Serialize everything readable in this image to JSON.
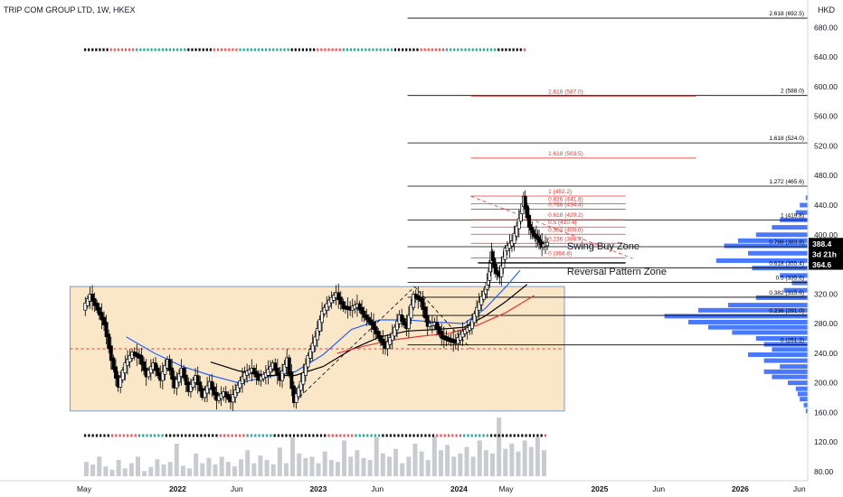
{
  "header": {
    "title": "TRIP COM GROUP LTD, 1W, HKEX"
  },
  "axis": {
    "currency": "HKD"
  },
  "colors": {
    "up": "#26a69a",
    "down": "#ef5350",
    "candle": "#000000",
    "volume": "#c9cbd1",
    "profile": "#2962ff",
    "zone": "#f5d7a3",
    "zone_border": "#7b9bd6",
    "fib_red": "#e53935",
    "fib_black": "#000000",
    "ma_fast": "#2962ff",
    "ma_mid": "#000000",
    "ma_slow": "#e53935"
  },
  "chart_data": {
    "type": "candlestick",
    "title": "TRIP COM GROUP LTD, 1W, HKEX",
    "y_unit": "HKD",
    "ylim": [
      78,
      712
    ],
    "y_ticks": [
      80,
      120,
      160,
      200,
      240,
      280,
      320,
      360,
      400,
      440,
      480,
      520,
      560,
      600,
      640,
      680
    ],
    "x_ticks": [
      {
        "label": "May",
        "t": 0
      },
      {
        "label": "2022",
        "t": 0.665
      },
      {
        "label": "Jun",
        "t": 1.085
      },
      {
        "label": "2023",
        "t": 1.665
      },
      {
        "label": "Jun",
        "t": 2.085
      },
      {
        "label": "2024",
        "t": 2.665
      },
      {
        "label": "May",
        "t": 3.0
      },
      {
        "label": "2025",
        "t": 3.665
      },
      {
        "label": "Jun",
        "t": 4.085
      },
      {
        "label": "2026",
        "t": 4.665
      },
      {
        "label": "Jun",
        "t": 5.085
      }
    ],
    "price_path": [
      [
        0,
        300
      ],
      [
        0.05,
        318
      ],
      [
        0.1,
        300
      ],
      [
        0.15,
        280
      ],
      [
        0.2,
        232
      ],
      [
        0.25,
        196
      ],
      [
        0.3,
        225
      ],
      [
        0.35,
        240
      ],
      [
        0.4,
        235
      ],
      [
        0.45,
        210
      ],
      [
        0.5,
        225
      ],
      [
        0.55,
        205
      ],
      [
        0.6,
        230
      ],
      [
        0.65,
        195
      ],
      [
        0.7,
        218
      ],
      [
        0.75,
        190
      ],
      [
        0.8,
        208
      ],
      [
        0.85,
        182
      ],
      [
        0.9,
        200
      ],
      [
        0.95,
        178
      ],
      [
        1.0,
        186
      ],
      [
        1.05,
        176
      ],
      [
        1.1,
        195
      ],
      [
        1.15,
        212
      ],
      [
        1.2,
        218
      ],
      [
        1.25,
        205
      ],
      [
        1.3,
        212
      ],
      [
        1.35,
        225
      ],
      [
        1.4,
        205
      ],
      [
        1.45,
        232
      ],
      [
        1.5,
        175
      ],
      [
        1.55,
        200
      ],
      [
        1.6,
        235
      ],
      [
        1.65,
        260
      ],
      [
        1.7,
        295
      ],
      [
        1.75,
        310
      ],
      [
        1.8,
        320
      ],
      [
        1.85,
        302
      ],
      [
        1.9,
        300
      ],
      [
        1.95,
        305
      ],
      [
        2.0,
        290
      ],
      [
        2.05,
        280
      ],
      [
        2.1,
        262
      ],
      [
        2.15,
        248
      ],
      [
        2.2,
        265
      ],
      [
        2.25,
        290
      ],
      [
        2.3,
        275
      ],
      [
        2.35,
        318
      ],
      [
        2.4,
        312
      ],
      [
        2.45,
        278
      ],
      [
        2.5,
        280
      ],
      [
        2.55,
        262
      ],
      [
        2.6,
        258
      ],
      [
        2.65,
        255
      ],
      [
        2.7,
        268
      ],
      [
        2.75,
        275
      ],
      [
        2.8,
        300
      ],
      [
        2.85,
        322
      ],
      [
        2.88,
        340
      ],
      [
        2.9,
        375
      ],
      [
        2.93,
        350
      ],
      [
        2.96,
        345
      ],
      [
        3.0,
        380
      ],
      [
        3.05,
        390
      ],
      [
        3.1,
        420
      ],
      [
        3.13,
        450
      ],
      [
        3.17,
        412
      ],
      [
        3.2,
        400
      ],
      [
        3.23,
        395
      ],
      [
        3.26,
        385
      ],
      [
        3.3,
        388
      ]
    ],
    "volume_max": 1.0,
    "volume": [
      0.22,
      0.18,
      0.3,
      0.15,
      0.1,
      0.25,
      0.12,
      0.2,
      0.3,
      0.08,
      0.14,
      0.26,
      0.18,
      0.22,
      0.5,
      0.16,
      0.12,
      0.35,
      0.2,
      0.28,
      0.18,
      0.3,
      0.22,
      0.15,
      0.26,
      0.4,
      0.2,
      0.32,
      0.25,
      0.18,
      0.44,
      0.2,
      0.6,
      0.35,
      0.28,
      0.3,
      0.2,
      0.38,
      0.25,
      0.22,
      0.55,
      0.3,
      0.4,
      0.28,
      0.25,
      0.6,
      0.35,
      0.3,
      0.42,
      0.2,
      0.3,
      0.5,
      0.38,
      0.25,
      0.62,
      0.4,
      0.48,
      0.3,
      0.35,
      0.45,
      0.3,
      0.55,
      0.4,
      0.35,
      0.9,
      0.42,
      0.5,
      0.38,
      0.55,
      0.45,
      0.6,
      0.4
    ],
    "moving_averages": [
      {
        "key": "ma_fast",
        "points": [
          [
            0.3,
            262
          ],
          [
            0.5,
            240
          ],
          [
            0.7,
            222
          ],
          [
            0.9,
            210
          ],
          [
            1.1,
            200
          ],
          [
            1.3,
            208
          ],
          [
            1.5,
            215
          ],
          [
            1.7,
            238
          ],
          [
            1.9,
            272
          ],
          [
            2.1,
            285
          ],
          [
            2.3,
            285
          ],
          [
            2.5,
            282
          ],
          [
            2.7,
            280
          ],
          [
            2.85,
            300
          ],
          [
            3.0,
            330
          ],
          [
            3.1,
            352
          ]
        ]
      },
      {
        "key": "ma_mid",
        "points": [
          [
            0.9,
            228
          ],
          [
            1.1,
            216
          ],
          [
            1.3,
            210
          ],
          [
            1.5,
            210
          ],
          [
            1.7,
            222
          ],
          [
            1.9,
            245
          ],
          [
            2.1,
            262
          ],
          [
            2.3,
            270
          ],
          [
            2.5,
            272
          ],
          [
            2.7,
            275
          ],
          [
            2.85,
            290
          ],
          [
            3.0,
            310
          ],
          [
            3.15,
            333
          ]
        ]
      },
      {
        "key": "ma_slow",
        "points": [
          [
            1.8,
            240
          ],
          [
            2.0,
            250
          ],
          [
            2.2,
            258
          ],
          [
            2.4,
            263
          ],
          [
            2.6,
            267
          ],
          [
            2.8,
            278
          ],
          [
            3.0,
            295
          ],
          [
            3.2,
            318
          ]
        ]
      }
    ],
    "volume_profile": [
      [
        450,
        0.01
      ],
      [
        440,
        0.04
      ],
      [
        430,
        0.06
      ],
      [
        420,
        0.14
      ],
      [
        410,
        0.18
      ],
      [
        400,
        0.26
      ],
      [
        392,
        0.35
      ],
      [
        385,
        0.42
      ],
      [
        375,
        0.3
      ],
      [
        365,
        0.46
      ],
      [
        355,
        0.28
      ],
      [
        345,
        0.14
      ],
      [
        335,
        0.08
      ],
      [
        325,
        0.12
      ],
      [
        315,
        0.26
      ],
      [
        305,
        0.4
      ],
      [
        298,
        0.55
      ],
      [
        290,
        0.72
      ],
      [
        282,
        0.6
      ],
      [
        275,
        0.5
      ],
      [
        268,
        0.38
      ],
      [
        260,
        0.26
      ],
      [
        252,
        0.22
      ],
      [
        245,
        0.18
      ],
      [
        238,
        0.3
      ],
      [
        230,
        0.22
      ],
      [
        222,
        0.14
      ],
      [
        215,
        0.22
      ],
      [
        208,
        0.18
      ],
      [
        200,
        0.1
      ],
      [
        192,
        0.06
      ],
      [
        185,
        0.05
      ],
      [
        178,
        0.04
      ],
      [
        170,
        0.02
      ],
      [
        162,
        0.01
      ]
    ],
    "zone_box": {
      "t0": -0.1,
      "t1": 3.415,
      "p0": 162,
      "p1": 330
    },
    "fib_black": [
      {
        "label": "2.618 (692.5)",
        "price": 692.5,
        "t0": 2.3
      },
      {
        "label": "2 (588.0)",
        "price": 588.0,
        "t0": 2.3
      },
      {
        "label": "1.618 (524.0)",
        "price": 524.0,
        "t0": 2.3
      },
      {
        "label": "1.272 (465.6)",
        "price": 465.6,
        "t0": 2.3
      },
      {
        "label": "1 (419.8)",
        "price": 419.8,
        "t0": 2.3
      },
      {
        "label": "0.786 (383.8)",
        "price": 383.8,
        "t0": 2.3
      },
      {
        "label": "0.618 (355.4)",
        "price": 355.4,
        "t0": 2.3
      },
      {
        "label": "0.5 (335.6)",
        "price": 335.6,
        "t0": 2.3
      },
      {
        "label": "0.382 (315.6)",
        "price": 315.6,
        "t0": 2.3
      },
      {
        "label": "0.236 (291.0)",
        "price": 291.0,
        "t0": 2.3
      },
      {
        "label": "0 (251.2)",
        "price": 251.2,
        "t0": 2.3
      }
    ],
    "fib_red": [
      {
        "label": "2.618 (587.0)",
        "price": 587.0
      },
      {
        "label": "1.618 (503.5)",
        "price": 503.5
      },
      {
        "label": "1 (452.2)",
        "price": 452.2
      },
      {
        "label": "0.826 (441.8)",
        "price": 441.8
      },
      {
        "label": "0.786 (434.4)",
        "price": 434.4
      },
      {
        "label": "0.618 (420.2)",
        "price": 420.2
      },
      {
        "label": "0.5 (410.4)",
        "price": 410.4
      },
      {
        "label": "0.382 (400.6)",
        "price": 400.6
      },
      {
        "label": "0.236 (388.4)",
        "price": 388.4
      },
      {
        "label": "0 (368.8)",
        "price": 368.8
      }
    ],
    "annotations": [
      {
        "key": "swing",
        "text": "Swing Buy Zone",
        "t": 3.35,
        "price": 380
      },
      {
        "key": "reversal",
        "text": "Reversal Pattern Zone",
        "t": 3.35,
        "price": 346
      }
    ],
    "price_tags": [
      {
        "label": "388.4",
        "price": 388.4,
        "bg": "#000000"
      },
      {
        "label": "3d 21h",
        "price": 374,
        "bg": "#000000"
      },
      {
        "label": "364.6",
        "price": 360,
        "bg": "#000000"
      }
    ]
  }
}
